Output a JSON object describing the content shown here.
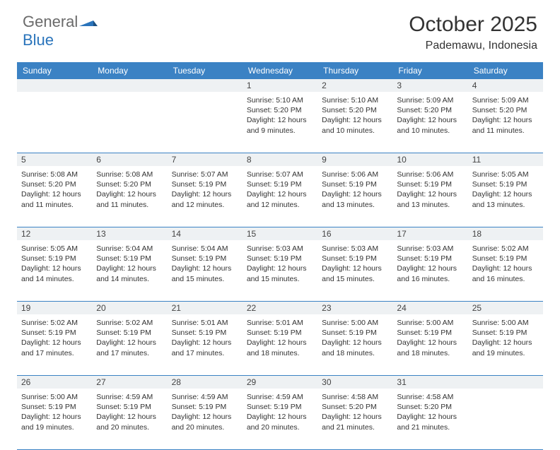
{
  "logo": {
    "text1": "General",
    "text2": "Blue"
  },
  "title": "October 2025",
  "location": "Pademawu, Indonesia",
  "colors": {
    "header_bg": "#3b82c4",
    "header_text": "#ffffff",
    "daynum_bg": "#eef1f3",
    "text": "#333333",
    "logo_gray": "#6a6a6a",
    "logo_blue": "#2a74bb",
    "border": "#3b82c4"
  },
  "day_names": [
    "Sunday",
    "Monday",
    "Tuesday",
    "Wednesday",
    "Thursday",
    "Friday",
    "Saturday"
  ],
  "weeks": [
    [
      {
        "n": "",
        "sr": "",
        "ss": "",
        "dl": ""
      },
      {
        "n": "",
        "sr": "",
        "ss": "",
        "dl": ""
      },
      {
        "n": "",
        "sr": "",
        "ss": "",
        "dl": ""
      },
      {
        "n": "1",
        "sr": "Sunrise: 5:10 AM",
        "ss": "Sunset: 5:20 PM",
        "dl": "Daylight: 12 hours and 9 minutes."
      },
      {
        "n": "2",
        "sr": "Sunrise: 5:10 AM",
        "ss": "Sunset: 5:20 PM",
        "dl": "Daylight: 12 hours and 10 minutes."
      },
      {
        "n": "3",
        "sr": "Sunrise: 5:09 AM",
        "ss": "Sunset: 5:20 PM",
        "dl": "Daylight: 12 hours and 10 minutes."
      },
      {
        "n": "4",
        "sr": "Sunrise: 5:09 AM",
        "ss": "Sunset: 5:20 PM",
        "dl": "Daylight: 12 hours and 11 minutes."
      }
    ],
    [
      {
        "n": "5",
        "sr": "Sunrise: 5:08 AM",
        "ss": "Sunset: 5:20 PM",
        "dl": "Daylight: 12 hours and 11 minutes."
      },
      {
        "n": "6",
        "sr": "Sunrise: 5:08 AM",
        "ss": "Sunset: 5:20 PM",
        "dl": "Daylight: 12 hours and 11 minutes."
      },
      {
        "n": "7",
        "sr": "Sunrise: 5:07 AM",
        "ss": "Sunset: 5:19 PM",
        "dl": "Daylight: 12 hours and 12 minutes."
      },
      {
        "n": "8",
        "sr": "Sunrise: 5:07 AM",
        "ss": "Sunset: 5:19 PM",
        "dl": "Daylight: 12 hours and 12 minutes."
      },
      {
        "n": "9",
        "sr": "Sunrise: 5:06 AM",
        "ss": "Sunset: 5:19 PM",
        "dl": "Daylight: 12 hours and 13 minutes."
      },
      {
        "n": "10",
        "sr": "Sunrise: 5:06 AM",
        "ss": "Sunset: 5:19 PM",
        "dl": "Daylight: 12 hours and 13 minutes."
      },
      {
        "n": "11",
        "sr": "Sunrise: 5:05 AM",
        "ss": "Sunset: 5:19 PM",
        "dl": "Daylight: 12 hours and 13 minutes."
      }
    ],
    [
      {
        "n": "12",
        "sr": "Sunrise: 5:05 AM",
        "ss": "Sunset: 5:19 PM",
        "dl": "Daylight: 12 hours and 14 minutes."
      },
      {
        "n": "13",
        "sr": "Sunrise: 5:04 AM",
        "ss": "Sunset: 5:19 PM",
        "dl": "Daylight: 12 hours and 14 minutes."
      },
      {
        "n": "14",
        "sr": "Sunrise: 5:04 AM",
        "ss": "Sunset: 5:19 PM",
        "dl": "Daylight: 12 hours and 15 minutes."
      },
      {
        "n": "15",
        "sr": "Sunrise: 5:03 AM",
        "ss": "Sunset: 5:19 PM",
        "dl": "Daylight: 12 hours and 15 minutes."
      },
      {
        "n": "16",
        "sr": "Sunrise: 5:03 AM",
        "ss": "Sunset: 5:19 PM",
        "dl": "Daylight: 12 hours and 15 minutes."
      },
      {
        "n": "17",
        "sr": "Sunrise: 5:03 AM",
        "ss": "Sunset: 5:19 PM",
        "dl": "Daylight: 12 hours and 16 minutes."
      },
      {
        "n": "18",
        "sr": "Sunrise: 5:02 AM",
        "ss": "Sunset: 5:19 PM",
        "dl": "Daylight: 12 hours and 16 minutes."
      }
    ],
    [
      {
        "n": "19",
        "sr": "Sunrise: 5:02 AM",
        "ss": "Sunset: 5:19 PM",
        "dl": "Daylight: 12 hours and 17 minutes."
      },
      {
        "n": "20",
        "sr": "Sunrise: 5:02 AM",
        "ss": "Sunset: 5:19 PM",
        "dl": "Daylight: 12 hours and 17 minutes."
      },
      {
        "n": "21",
        "sr": "Sunrise: 5:01 AM",
        "ss": "Sunset: 5:19 PM",
        "dl": "Daylight: 12 hours and 17 minutes."
      },
      {
        "n": "22",
        "sr": "Sunrise: 5:01 AM",
        "ss": "Sunset: 5:19 PM",
        "dl": "Daylight: 12 hours and 18 minutes."
      },
      {
        "n": "23",
        "sr": "Sunrise: 5:00 AM",
        "ss": "Sunset: 5:19 PM",
        "dl": "Daylight: 12 hours and 18 minutes."
      },
      {
        "n": "24",
        "sr": "Sunrise: 5:00 AM",
        "ss": "Sunset: 5:19 PM",
        "dl": "Daylight: 12 hours and 18 minutes."
      },
      {
        "n": "25",
        "sr": "Sunrise: 5:00 AM",
        "ss": "Sunset: 5:19 PM",
        "dl": "Daylight: 12 hours and 19 minutes."
      }
    ],
    [
      {
        "n": "26",
        "sr": "Sunrise: 5:00 AM",
        "ss": "Sunset: 5:19 PM",
        "dl": "Daylight: 12 hours and 19 minutes."
      },
      {
        "n": "27",
        "sr": "Sunrise: 4:59 AM",
        "ss": "Sunset: 5:19 PM",
        "dl": "Daylight: 12 hours and 20 minutes."
      },
      {
        "n": "28",
        "sr": "Sunrise: 4:59 AM",
        "ss": "Sunset: 5:19 PM",
        "dl": "Daylight: 12 hours and 20 minutes."
      },
      {
        "n": "29",
        "sr": "Sunrise: 4:59 AM",
        "ss": "Sunset: 5:19 PM",
        "dl": "Daylight: 12 hours and 20 minutes."
      },
      {
        "n": "30",
        "sr": "Sunrise: 4:58 AM",
        "ss": "Sunset: 5:20 PM",
        "dl": "Daylight: 12 hours and 21 minutes."
      },
      {
        "n": "31",
        "sr": "Sunrise: 4:58 AM",
        "ss": "Sunset: 5:20 PM",
        "dl": "Daylight: 12 hours and 21 minutes."
      },
      {
        "n": "",
        "sr": "",
        "ss": "",
        "dl": ""
      }
    ]
  ]
}
